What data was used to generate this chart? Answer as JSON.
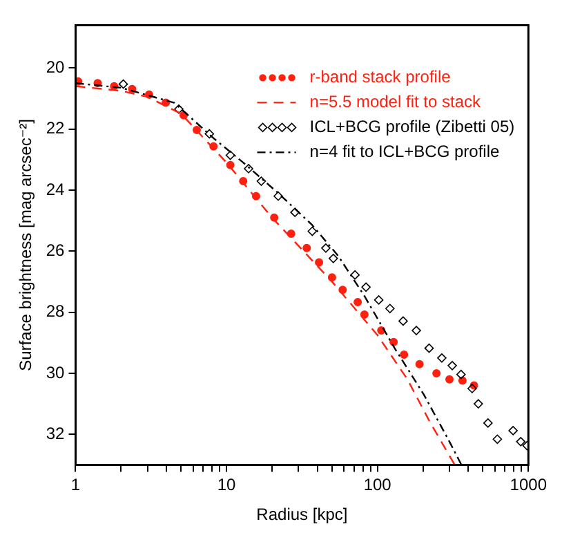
{
  "chart_data": {
    "type": "line",
    "xlabel": "Radius [kpc]",
    "ylabel": "Surface brightness [mag arcsec⁻²]",
    "log": "x",
    "xlim": [
      1,
      1000
    ],
    "ylim": [
      33,
      18.6
    ],
    "xticks": [
      1,
      {
        "value": 2,
        "label": null
      },
      {
        "value": 3,
        "label": null
      },
      {
        "value": 4,
        "label": null
      },
      {
        "value": 5,
        "label": null
      },
      {
        "value": 6,
        "label": null
      },
      {
        "value": 7,
        "label": null
      },
      {
        "value": 8,
        "label": null
      },
      {
        "value": 9,
        "label": null
      },
      10,
      {
        "value": 20,
        "label": null
      },
      {
        "value": 30,
        "label": null
      },
      {
        "value": 40,
        "label": null
      },
      {
        "value": 50,
        "label": null
      },
      {
        "value": 60,
        "label": null
      },
      {
        "value": 70,
        "label": null
      },
      {
        "value": 80,
        "label": null
      },
      {
        "value": 90,
        "label": null
      },
      100,
      {
        "value": 200,
        "label": null
      },
      {
        "value": 300,
        "label": null
      },
      {
        "value": 400,
        "label": null
      },
      {
        "value": 500,
        "label": null
      },
      {
        "value": 600,
        "label": null
      },
      {
        "value": 700,
        "label": null
      },
      {
        "value": 800,
        "label": null
      },
      {
        "value": 900,
        "label": null
      },
      1000
    ],
    "yticks": [
      20,
      22,
      24,
      26,
      28,
      30,
      32
    ],
    "grid": false,
    "legend": "top right",
    "series": [
      {
        "name": "r-band stack profile",
        "type": "scatter",
        "marker": "circle",
        "color": "#ff2010",
        "x": [
          1.04,
          1.4,
          1.8,
          2.37,
          3.07,
          3.96,
          5.2,
          6.35,
          8.2,
          10.6,
          12.9,
          15.7,
          20.7,
          26.8,
          34,
          41,
          50,
          58.8,
          74,
          82,
          106,
          128,
          150,
          190,
          246,
          300,
          366,
          436
        ],
        "values": [
          20.44,
          20.5,
          20.6,
          20.69,
          20.87,
          21.14,
          21.55,
          22.03,
          22.57,
          23.18,
          23.71,
          24.2,
          24.9,
          25.43,
          25.9,
          26.37,
          26.86,
          27.27,
          27.67,
          28.08,
          28.6,
          28.98,
          29.39,
          29.7,
          30.0,
          30.2,
          30.24,
          30.4
        ]
      },
      {
        "name": "n=5.5 model fit to stack",
        "type": "line",
        "marker": "none",
        "line_style": "dashed",
        "color": "#ff2010",
        "x": [
          1,
          2,
          3,
          5,
          10,
          20,
          50,
          100,
          158,
          220,
          325
        ],
        "values": [
          20.6,
          20.75,
          20.95,
          21.5,
          23.1,
          24.9,
          27.0,
          28.75,
          30.2,
          31.55,
          33
        ]
      },
      {
        "name": "ICL+BCG profile (Zibetti 05)",
        "type": "scatter",
        "marker": "diamond",
        "color": "#000000",
        "x": [
          2.07,
          4.83,
          7.7,
          10.6,
          14,
          17,
          22,
          28.4,
          37,
          45.5,
          51,
          71,
          84,
          102,
          121,
          148,
          181,
          220,
          267,
          313,
          358,
          424,
          466,
          540,
          623,
          792,
          890,
          980
        ],
        "values": [
          20.53,
          21.35,
          22.16,
          22.86,
          23.3,
          23.71,
          24.2,
          24.73,
          25.35,
          25.9,
          26.24,
          26.78,
          27.18,
          27.6,
          27.88,
          28.29,
          28.6,
          29.18,
          29.5,
          29.75,
          30.04,
          30.5,
          31.0,
          31.63,
          32.16,
          31.88,
          32.24,
          32.37
        ]
      },
      {
        "name": "n=4 fit to ICL+BCG profile",
        "type": "line",
        "marker": "none",
        "line_style": "dashdot",
        "color": "#000000",
        "x": [
          1,
          2,
          4.5,
          8.2,
          12.9,
          22,
          37,
          55,
          82,
          130,
          203,
          300,
          360
        ],
        "values": [
          20.5,
          20.65,
          21.14,
          22.3,
          23.1,
          24.1,
          25.15,
          26.16,
          27.47,
          29.18,
          30.7,
          32.24,
          33
        ]
      }
    ]
  }
}
